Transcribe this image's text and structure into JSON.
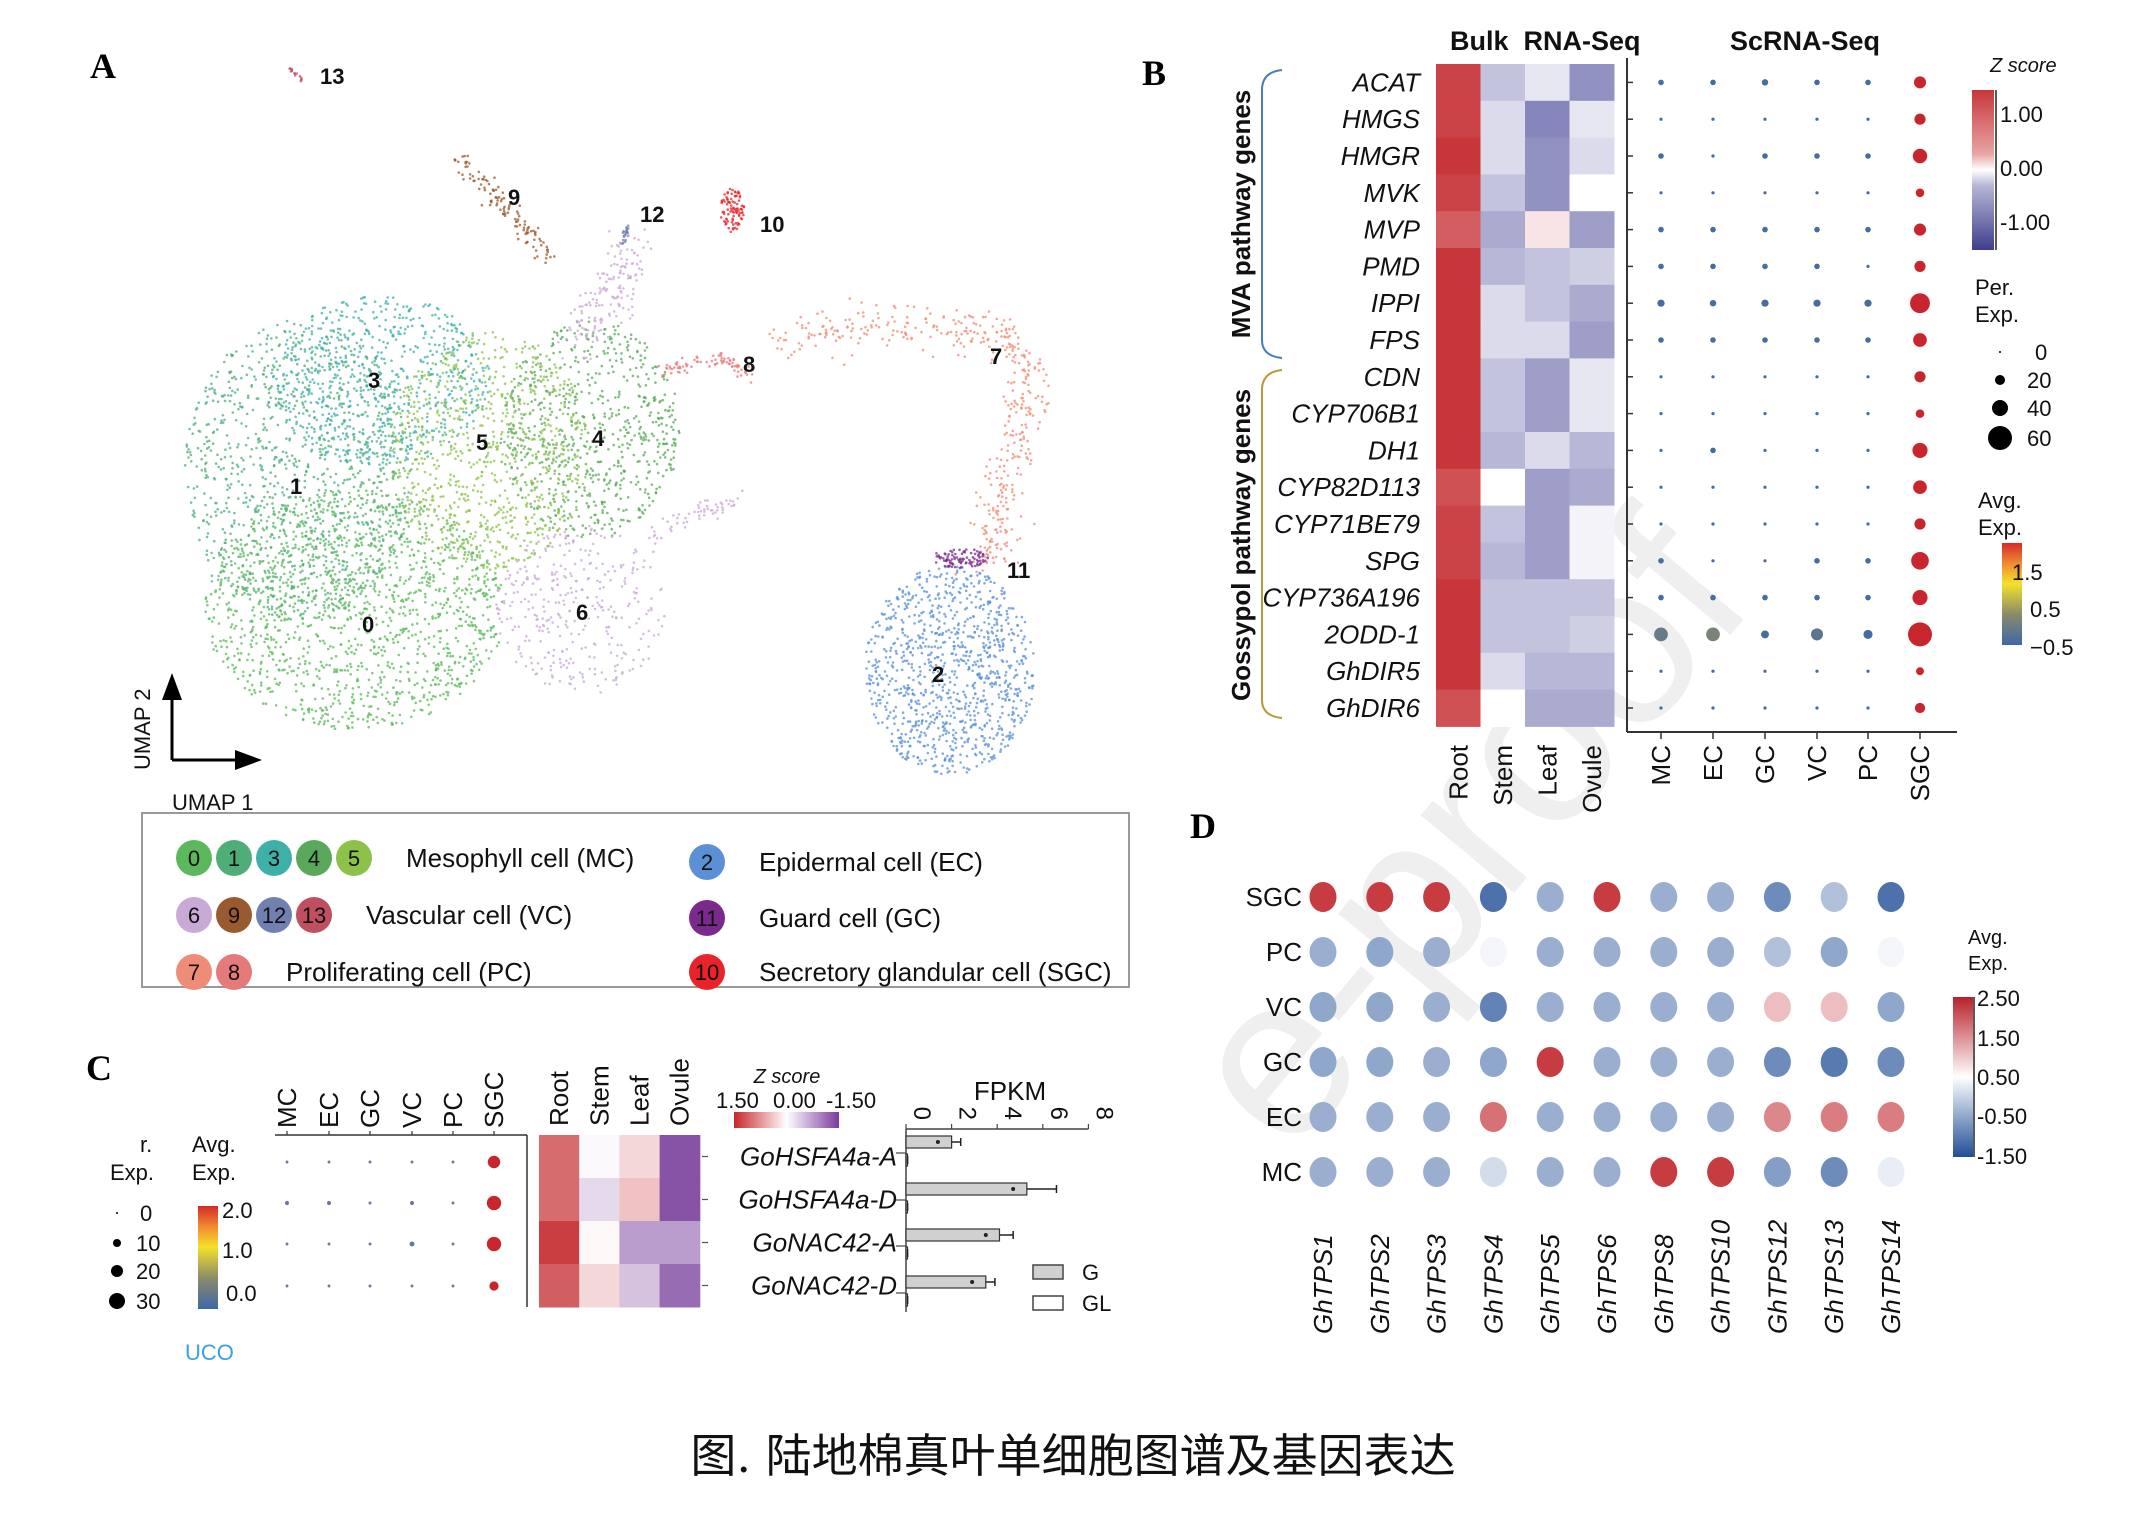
{
  "caption": "图. 陆地棉真叶单细胞图谱及基因表达",
  "watermark": "e-proof",
  "panels": {
    "A": {
      "letter": "A",
      "axis_x_label": "UMAP 1",
      "axis_y_label": "UMAP 2",
      "clusters": [
        {
          "id": "0",
          "color": "#5cb85c"
        },
        {
          "id": "1",
          "color": "#4fae78"
        },
        {
          "id": "2",
          "color": "#5b8fd6"
        },
        {
          "id": "3",
          "color": "#3fb0a8"
        },
        {
          "id": "4",
          "color": "#5aa85a"
        },
        {
          "id": "5",
          "color": "#8cc24a"
        },
        {
          "id": "6",
          "color": "#c9a9d6"
        },
        {
          "id": "7",
          "color": "#ee8c78"
        },
        {
          "id": "8",
          "color": "#e57a7a"
        },
        {
          "id": "9",
          "color": "#9a5a30"
        },
        {
          "id": "10",
          "color": "#e8242a"
        },
        {
          "id": "11",
          "color": "#7a2a8c"
        },
        {
          "id": "12",
          "color": "#7080b0"
        },
        {
          "id": "13",
          "color": "#c05060"
        }
      ],
      "legend": [
        {
          "ids": [
            "0",
            "1",
            "3",
            "4",
            "5"
          ],
          "label": "Mesophyll cell (MC)"
        },
        {
          "ids": [
            "2"
          ],
          "label": "Epidermal cell (EC)"
        },
        {
          "ids": [
            "6",
            "9",
            "12",
            "13"
          ],
          "label": "Vascular cell (VC)"
        },
        {
          "ids": [
            "11"
          ],
          "label": "Guard cell (GC)"
        },
        {
          "ids": [
            "7",
            "8"
          ],
          "label": "Proliferating cell (PC)"
        },
        {
          "ids": [
            "10"
          ],
          "label": "Secretory glandular cell (SGC)"
        }
      ]
    },
    "B": {
      "letter": "B",
      "bulk_title": "Bulk  RNA-Seq",
      "sc_title": "ScRNA-Seq",
      "group_mva": "MVA pathway genes",
      "group_gossypol": "Gossypol pathway genes",
      "zscore_title": "Z score",
      "zscore_ticks": [
        "1.00",
        "0.00",
        "-1.00"
      ],
      "per_exp_title": [
        "Per.",
        "Exp."
      ],
      "per_exp_ticks": [
        "0",
        "20",
        "40",
        "60"
      ],
      "avg_exp_title": [
        "Avg.",
        "Exp."
      ],
      "avg_exp_ticks": [
        "1.5",
        "0.5",
        "−0.5"
      ]
    },
    "C": {
      "letter": "C",
      "per_exp_title": [
        "r.",
        "Exp."
      ],
      "per_exp_ticks": [
        "0",
        "10",
        "20",
        "30"
      ],
      "avg_exp_title": [
        "Avg.",
        "Exp."
      ],
      "avg_exp_ticks": [
        "2.0",
        "1.0",
        "0.0"
      ],
      "zscore_title": "Z score",
      "zscore_ticks": [
        "1.50",
        "0.00",
        "-1.50"
      ],
      "fpkm_title": "FPKM",
      "bar_legend": [
        "G",
        "GL"
      ],
      "cutoff_text": "UCO"
    },
    "D": {
      "letter": "D",
      "avg_exp_title": [
        "Avg.",
        "Exp."
      ],
      "colorbar_ticks": [
        "2.50",
        "1.50",
        "0.50",
        "-0.50",
        "-1.50"
      ]
    }
  },
  "chart_data": [
    {
      "id": "B-bulk-heatmap",
      "type": "heatmap",
      "title": "Bulk RNA-Seq",
      "rows": [
        "ACAT",
        "HMGS",
        "HMGR",
        "MVK",
        "MVP",
        "PMD",
        "IPPI",
        "FPS",
        "CDN",
        "CYP706B1",
        "DH1",
        "CYP82D113",
        "CYP71BE79",
        "SPG",
        "CYP736A196",
        "2ODD-1",
        "GhDIR5",
        "GhDIR6"
      ],
      "columns": [
        "Root",
        "Stem",
        "Leaf",
        "Ovule"
      ],
      "colorscale": {
        "title": "Z score",
        "range": [
          -1.5,
          1.5
        ],
        "low": "#4a4a9a",
        "mid": "#ffffff",
        "high": "#c8363a"
      },
      "values": [
        [
          1.4,
          -0.5,
          -0.2,
          -0.9
        ],
        [
          1.4,
          -0.3,
          -1.0,
          -0.2
        ],
        [
          1.5,
          -0.3,
          -0.9,
          -0.3
        ],
        [
          1.4,
          -0.5,
          -0.9,
          0.0
        ],
        [
          1.2,
          -0.7,
          0.2,
          -0.8
        ],
        [
          1.5,
          -0.6,
          -0.5,
          -0.4
        ],
        [
          1.5,
          -0.3,
          -0.5,
          -0.7
        ],
        [
          1.5,
          -0.3,
          -0.3,
          -0.8
        ],
        [
          1.5,
          -0.5,
          -0.8,
          -0.2
        ],
        [
          1.5,
          -0.5,
          -0.8,
          -0.2
        ],
        [
          1.5,
          -0.6,
          -0.3,
          -0.6
        ],
        [
          1.3,
          0.0,
          -0.8,
          -0.7
        ],
        [
          1.4,
          -0.5,
          -0.8,
          -0.1
        ],
        [
          1.4,
          -0.6,
          -0.8,
          -0.1
        ],
        [
          1.5,
          -0.5,
          -0.5,
          -0.5
        ],
        [
          1.5,
          -0.5,
          -0.5,
          -0.4
        ],
        [
          1.5,
          -0.3,
          -0.6,
          -0.6
        ],
        [
          1.3,
          0.0,
          -0.7,
          -0.7
        ]
      ]
    },
    {
      "id": "B-sc-dotplot",
      "type": "scatter",
      "title": "ScRNA-Seq",
      "rows": [
        "ACAT",
        "HMGS",
        "HMGR",
        "MVK",
        "MVP",
        "PMD",
        "IPPI",
        "FPS",
        "CDN",
        "CYP706B1",
        "DH1",
        "CYP82D113",
        "CYP71BE79",
        "SPG",
        "CYP736A196",
        "2ODD-1",
        "GhDIR5",
        "GhDIR6"
      ],
      "columns": [
        "MC",
        "EC",
        "GC",
        "VC",
        "PC",
        "SGC"
      ],
      "size_legend": {
        "title": "Per. Exp.",
        "values": [
          0,
          20,
          40,
          60
        ]
      },
      "color_legend": {
        "title": "Avg. Exp.",
        "range": [
          -0.5,
          2.0
        ]
      },
      "per_exp": [
        [
          3,
          3,
          4,
          3,
          3,
          14
        ],
        [
          1,
          1,
          1,
          1,
          1,
          12
        ],
        [
          3,
          1,
          3,
          3,
          3,
          20
        ],
        [
          1,
          1,
          1,
          1,
          1,
          7
        ],
        [
          3,
          3,
          3,
          3,
          3,
          14
        ],
        [
          3,
          3,
          3,
          3,
          1,
          12
        ],
        [
          5,
          4,
          5,
          5,
          5,
          38
        ],
        [
          3,
          3,
          3,
          3,
          3,
          18
        ],
        [
          1,
          1,
          1,
          1,
          1,
          12
        ],
        [
          1,
          1,
          1,
          1,
          1,
          7
        ],
        [
          1,
          3,
          1,
          1,
          1,
          22
        ],
        [
          1,
          1,
          1,
          1,
          1,
          18
        ],
        [
          1,
          1,
          1,
          1,
          1,
          12
        ],
        [
          3,
          1,
          1,
          3,
          3,
          30
        ],
        [
          3,
          3,
          3,
          3,
          3,
          22
        ],
        [
          18,
          18,
          6,
          14,
          8,
          55
        ],
        [
          1,
          1,
          1,
          1,
          1,
          6
        ],
        [
          1,
          1,
          1,
          1,
          1,
          10
        ]
      ],
      "avg_exp": [
        [
          -0.4,
          -0.4,
          -0.4,
          -0.4,
          -0.4,
          2.0
        ],
        [
          -0.4,
          -0.4,
          -0.4,
          -0.4,
          -0.4,
          2.0
        ],
        [
          -0.4,
          -0.4,
          -0.4,
          -0.4,
          -0.4,
          2.0
        ],
        [
          -0.4,
          -0.4,
          -0.4,
          -0.4,
          -0.4,
          2.0
        ],
        [
          -0.4,
          -0.4,
          -0.4,
          -0.4,
          -0.4,
          2.0
        ],
        [
          -0.4,
          -0.4,
          -0.4,
          -0.4,
          -0.4,
          2.0
        ],
        [
          -0.4,
          -0.4,
          -0.4,
          -0.4,
          -0.4,
          2.0
        ],
        [
          -0.4,
          -0.4,
          -0.4,
          -0.4,
          -0.4,
          2.0
        ],
        [
          -0.4,
          -0.4,
          -0.4,
          -0.4,
          -0.4,
          2.0
        ],
        [
          -0.4,
          -0.4,
          -0.4,
          -0.4,
          -0.4,
          2.0
        ],
        [
          -0.4,
          -0.4,
          -0.4,
          -0.4,
          -0.4,
          2.0
        ],
        [
          -0.4,
          -0.4,
          -0.4,
          -0.4,
          -0.4,
          2.0
        ],
        [
          -0.4,
          -0.4,
          -0.4,
          -0.4,
          -0.4,
          2.0
        ],
        [
          -0.4,
          -0.4,
          -0.4,
          -0.4,
          -0.4,
          2.0
        ],
        [
          -0.4,
          -0.4,
          -0.4,
          -0.4,
          -0.4,
          2.0
        ],
        [
          -0.1,
          0.1,
          -0.4,
          -0.2,
          -0.4,
          2.0
        ],
        [
          -0.4,
          -0.4,
          -0.4,
          -0.4,
          -0.4,
          2.0
        ],
        [
          -0.4,
          -0.4,
          -0.4,
          -0.4,
          -0.4,
          2.0
        ]
      ]
    },
    {
      "id": "C-dotplot",
      "type": "scatter",
      "rows": [
        "GoHSFA4a-A",
        "GoHSFA4a-D",
        "GoNAC42-A",
        "GoNAC42-D"
      ],
      "columns": [
        "MC",
        "EC",
        "GC",
        "VC",
        "PC",
        "SGC"
      ],
      "size_legend": {
        "title": "Per. Exp.",
        "values": [
          0,
          10,
          20,
          30
        ]
      },
      "color_legend": {
        "title": "Avg. Exp.",
        "range": [
          -0.3,
          2.0
        ]
      },
      "per_exp": [
        [
          1,
          1,
          1,
          1,
          1,
          18
        ],
        [
          2,
          2,
          1,
          2,
          1,
          24
        ],
        [
          1,
          1,
          1,
          3,
          1,
          24
        ],
        [
          1,
          1,
          1,
          1,
          1,
          10
        ]
      ],
      "avg_exp": [
        [
          -0.2,
          -0.2,
          -0.2,
          -0.2,
          -0.2,
          2.0
        ],
        [
          -0.2,
          -0.2,
          -0.2,
          -0.2,
          -0.2,
          2.0
        ],
        [
          -0.2,
          -0.2,
          -0.2,
          -0.2,
          -0.2,
          2.0
        ],
        [
          -0.2,
          -0.2,
          -0.2,
          -0.2,
          -0.2,
          2.0
        ]
      ]
    },
    {
      "id": "C-heatmap",
      "type": "heatmap",
      "rows": [
        "GoHSFA4a-A",
        "GoHSFA4a-D",
        "GoNAC42-A",
        "GoNAC42-D"
      ],
      "columns": [
        "Root",
        "Stem",
        "Leaf",
        "Ovule"
      ],
      "colorscale": {
        "title": "Z score",
        "range": [
          1.5,
          -1.5
        ],
        "high": "#c8363a",
        "mid": "#ffffff",
        "low": "#7e47a0"
      },
      "values": [
        [
          1.1,
          -0.05,
          0.3,
          -1.4
        ],
        [
          1.1,
          -0.3,
          0.45,
          -1.4
        ],
        [
          1.45,
          0.05,
          -0.8,
          -0.8
        ],
        [
          1.2,
          0.3,
          -0.5,
          -1.2
        ]
      ]
    },
    {
      "id": "C-fpkm-bar",
      "type": "bar",
      "orientation": "horizontal",
      "title": "FPKM",
      "categories": [
        "GoHSFA4a-A",
        "GoHSFA4a-D",
        "GoNAC42-A",
        "GoNAC42-D"
      ],
      "xlim": [
        0,
        8
      ],
      "xticks": [
        "0",
        "2",
        "4",
        "6",
        "8"
      ],
      "series": [
        {
          "name": "G",
          "values": [
            2.0,
            5.3,
            4.1,
            3.5
          ],
          "error": [
            0.4,
            1.3,
            0.6,
            0.4
          ],
          "fill": "#d0d0d0"
        },
        {
          "name": "GL",
          "values": [
            0.05,
            0.05,
            0.05,
            0.05
          ],
          "error": [
            0.02,
            0.02,
            0.02,
            0.02
          ],
          "fill": "#ffffff"
        }
      ]
    },
    {
      "id": "D-dotplot",
      "type": "heatmap",
      "rows": [
        "SGC",
        "PC",
        "VC",
        "GC",
        "EC",
        "MC"
      ],
      "columns": [
        "GhTPS1",
        "GhTPS2",
        "GhTPS3",
        "GhTPS4",
        "GhTPS5",
        "GhTPS6",
        "GhTPS8",
        "GhTPS10",
        "GhTPS12",
        "GhTPS13",
        "GhTPS14"
      ],
      "colorscale": {
        "title": "Avg. Exp.",
        "range": [
          -1.5,
          2.5
        ],
        "low": "#1f4e96",
        "mid": "#ffffff",
        "high": "#c0262c",
        "mid_value": 0.5
      },
      "values": [
        [
          2.3,
          2.3,
          2.3,
          -1.1,
          -0.4,
          2.3,
          -0.4,
          -0.4,
          -0.8,
          -0.2,
          -1.1
        ],
        [
          -0.4,
          -0.5,
          -0.4,
          0.4,
          -0.4,
          -0.4,
          -0.4,
          -0.4,
          -0.2,
          -0.5,
          0.4
        ],
        [
          -0.5,
          -0.5,
          -0.4,
          -0.9,
          -0.4,
          -0.4,
          -0.4,
          -0.4,
          1.1,
          1.1,
          -0.5
        ],
        [
          -0.5,
          -0.5,
          -0.4,
          -0.5,
          2.3,
          -0.4,
          -0.4,
          -0.4,
          -0.8,
          -1.0,
          -0.8
        ],
        [
          -0.4,
          -0.4,
          -0.4,
          1.8,
          -0.4,
          -0.4,
          -0.4,
          -0.4,
          1.6,
          1.7,
          1.7
        ],
        [
          -0.4,
          -0.4,
          -0.4,
          0.1,
          -0.4,
          -0.4,
          2.3,
          2.3,
          -0.6,
          -0.8,
          0.3
        ]
      ]
    }
  ]
}
